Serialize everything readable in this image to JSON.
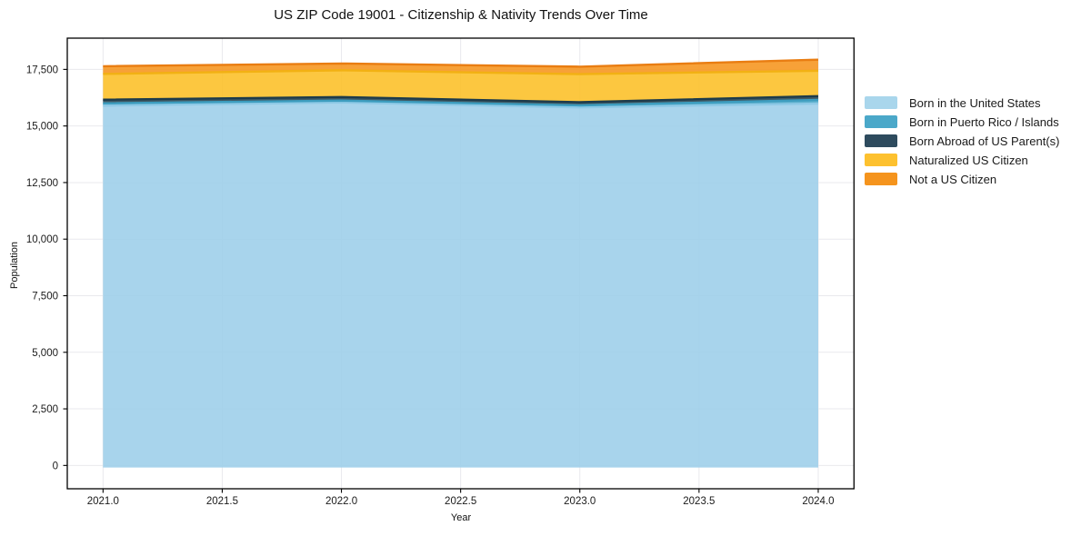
{
  "chart_data": {
    "type": "area",
    "stacked": true,
    "title": "US ZIP Code 19001 - Citizenship & Nativity Trends Over Time",
    "xlabel": "Year",
    "ylabel": "Population",
    "x": [
      2021,
      2022,
      2023,
      2024
    ],
    "series": [
      {
        "name": "Born in the United States",
        "color": "#a9d6ec",
        "fill": "#9ccee9",
        "edge": "#8ec9e6",
        "values": [
          15900,
          16040,
          15820,
          15990
        ]
      },
      {
        "name": "Born in Puerto Rico / Islands",
        "color": "#4ba8c9",
        "fill": "#47a5c6",
        "edge": "#3d9dbf",
        "values": [
          100,
          80,
          90,
          160
        ]
      },
      {
        "name": "Born Abroad of US Parent(s)",
        "color": "#2e4b5e",
        "fill": "#24424f",
        "edge": "#1d3b4b",
        "values": [
          160,
          160,
          140,
          170
        ]
      },
      {
        "name": "Naturalized US Citizen",
        "color": "#fdc12f",
        "fill": "#fcbf25",
        "edge": "#f2b113",
        "values": [
          1140,
          1180,
          1240,
          1120
        ]
      },
      {
        "name": "Not a US Citizen",
        "color": "#f5941d",
        "fill": "#f6941c",
        "edge": "#e97d12",
        "values": [
          340,
          300,
          330,
          490
        ]
      }
    ],
    "xlim": [
      2020.85,
      2024.15
    ],
    "ylim": [
      -1030,
      18880
    ],
    "xticks": {
      "values": [
        2021.0,
        2021.5,
        2022.0,
        2022.5,
        2023.0,
        2023.5,
        2024.0
      ],
      "labels": [
        "2021.0",
        "2021.5",
        "2022.0",
        "2022.5",
        "2023.0",
        "2023.5",
        "2024.0"
      ]
    },
    "yticks": {
      "values": [
        0,
        2500,
        5000,
        7500,
        10000,
        12500,
        15000,
        17500
      ],
      "labels": [
        "0",
        "2,500",
        "5,000",
        "7,500",
        "10,000",
        "12,500",
        "15,000",
        "17,500"
      ]
    },
    "grid": true,
    "grid_color": "#e9e9ed",
    "spine_color": "#000000",
    "tick_label_color": "#1a1a1a",
    "fill_opacity": 0.88,
    "baseline": -90,
    "legend_position": "right"
  }
}
